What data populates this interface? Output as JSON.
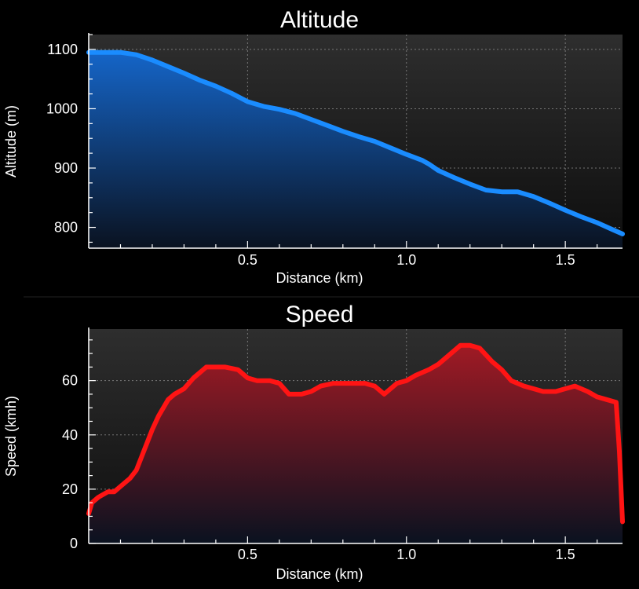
{
  "chart_data": [
    {
      "type": "area",
      "title": "Altitude",
      "xlabel": "Distance (km)",
      "ylabel": "Altitude (m)",
      "xlim": [
        0,
        1.68
      ],
      "ylim": [
        765,
        1125
      ],
      "xticks": [
        0.5,
        1.0,
        1.5
      ],
      "xtick_labels": [
        "0.5",
        "1.0",
        "1.5"
      ],
      "yticks": [
        800,
        900,
        1000,
        1100
      ],
      "ytick_labels": [
        "800",
        "900",
        "1000",
        "1100"
      ],
      "grid": true,
      "colors": {
        "line": "#1a8cff",
        "fill_top": "#1565c8",
        "fill_bottom": "#0a1220"
      },
      "x": [
        0.0,
        0.05,
        0.1,
        0.15,
        0.2,
        0.25,
        0.3,
        0.35,
        0.4,
        0.45,
        0.5,
        0.55,
        0.6,
        0.65,
        0.7,
        0.75,
        0.8,
        0.85,
        0.9,
        0.95,
        1.0,
        1.05,
        1.07,
        1.1,
        1.15,
        1.2,
        1.25,
        1.3,
        1.35,
        1.4,
        1.45,
        1.5,
        1.55,
        1.6,
        1.65,
        1.68
      ],
      "values": [
        1095,
        1095,
        1095,
        1091,
        1082,
        1071,
        1060,
        1048,
        1038,
        1026,
        1012,
        1004,
        999,
        992,
        982,
        972,
        962,
        953,
        945,
        934,
        923,
        913,
        907,
        896,
        884,
        873,
        863,
        860,
        860,
        852,
        841,
        829,
        818,
        808,
        796,
        789
      ]
    },
    {
      "type": "area",
      "title": "Speed",
      "xlabel": "Distance (km)",
      "ylabel": "Speed (kmh)",
      "xlim": [
        0,
        1.68
      ],
      "ylim": [
        0,
        79
      ],
      "xticks": [
        0.5,
        1.0,
        1.5
      ],
      "xtick_labels": [
        "0.5",
        "1.0",
        "1.5"
      ],
      "yticks": [
        0,
        20,
        40,
        60
      ],
      "ytick_labels": [
        "0",
        "20",
        "40",
        "60"
      ],
      "grid": true,
      "colors": {
        "line": "#ff1414",
        "fill_top": "#a01a24",
        "fill_bottom": "#0a1220"
      },
      "x": [
        0.0,
        0.01,
        0.03,
        0.06,
        0.08,
        0.1,
        0.13,
        0.15,
        0.17,
        0.2,
        0.22,
        0.25,
        0.27,
        0.3,
        0.33,
        0.37,
        0.4,
        0.43,
        0.47,
        0.5,
        0.53,
        0.57,
        0.6,
        0.63,
        0.67,
        0.7,
        0.73,
        0.77,
        0.8,
        0.83,
        0.87,
        0.9,
        0.93,
        0.97,
        1.0,
        1.03,
        1.07,
        1.1,
        1.13,
        1.17,
        1.2,
        1.23,
        1.27,
        1.3,
        1.33,
        1.37,
        1.4,
        1.43,
        1.47,
        1.5,
        1.53,
        1.57,
        1.6,
        1.63,
        1.66,
        1.67,
        1.68
      ],
      "values": [
        11,
        15,
        17,
        19,
        19,
        21,
        24,
        27,
        33,
        42,
        47,
        53,
        55,
        57,
        61,
        65,
        65,
        65,
        64,
        61,
        60,
        60,
        59,
        55,
        55,
        56,
        58,
        59,
        59,
        59,
        59,
        58,
        55,
        59,
        60,
        62,
        64,
        66,
        69,
        73,
        73,
        72,
        67,
        64,
        60,
        58,
        57,
        56,
        56,
        57,
        58,
        56,
        54,
        53,
        52,
        34,
        8
      ]
    }
  ]
}
